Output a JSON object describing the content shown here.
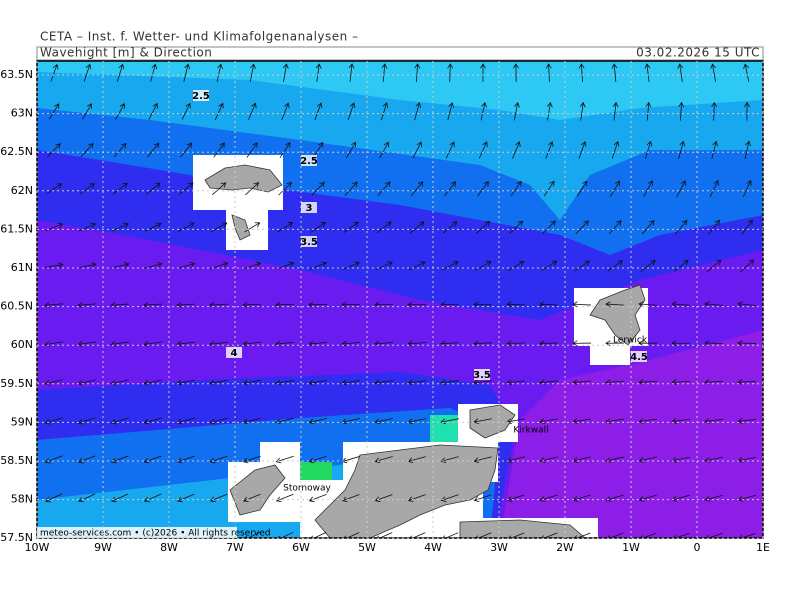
{
  "header": "CETA – Inst. f. Wetter- und Klimafolgenanalysen –",
  "title": "Wavehight [m] & Direction",
  "date": "03.02.2026 15 UTC",
  "map": {
    "lat_ticks": [
      {
        "value": 63.5,
        "label": "63.5N"
      },
      {
        "value": 63,
        "label": "63N"
      },
      {
        "value": 62.5,
        "label": "62.5N"
      },
      {
        "value": 62,
        "label": "62N"
      },
      {
        "value": 61.5,
        "label": "61.5N"
      },
      {
        "value": 61,
        "label": "61N"
      },
      {
        "value": 60.5,
        "label": "60.5N"
      },
      {
        "value": 60,
        "label": "60N"
      },
      {
        "value": 59.5,
        "label": "59.5N"
      },
      {
        "value": 59,
        "label": "59N"
      },
      {
        "value": 58.5,
        "label": "58.5N"
      },
      {
        "value": 58,
        "label": "58N"
      },
      {
        "value": 57.5,
        "label": "57.5N"
      }
    ],
    "lon_ticks": [
      {
        "value": -10,
        "label": "10W"
      },
      {
        "value": -9,
        "label": "9W"
      },
      {
        "value": -8,
        "label": "8W"
      },
      {
        "value": -7,
        "label": "7W"
      },
      {
        "value": -6,
        "label": "6W"
      },
      {
        "value": -5,
        "label": "5W"
      },
      {
        "value": -4,
        "label": "4W"
      },
      {
        "value": -3,
        "label": "3W"
      },
      {
        "value": -2,
        "label": "2W"
      },
      {
        "value": -1,
        "label": "1W"
      },
      {
        "value": 0,
        "label": "0"
      },
      {
        "value": 1,
        "label": "1E"
      }
    ],
    "contour_labels": [
      "2.5",
      "2.5",
      "3",
      "3.5",
      "4",
      "3.5",
      "4.5"
    ],
    "places": [
      "Lerwick",
      "Kirkwall",
      "Stornoway"
    ]
  },
  "copyright": "meteo-services.com • (c)2026 • All rights reserved"
}
